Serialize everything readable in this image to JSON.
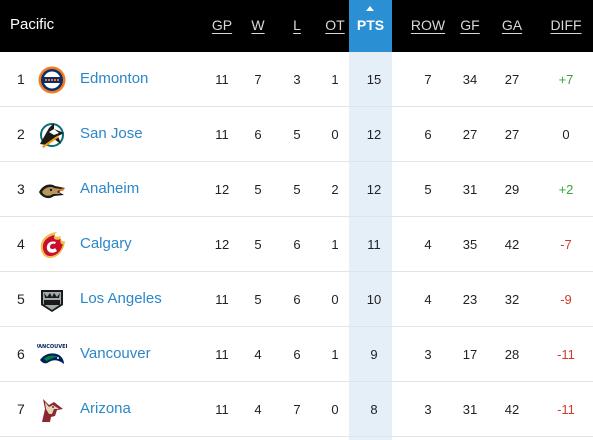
{
  "division": "Pacific",
  "columns": {
    "gp": "GP",
    "w": "W",
    "l": "L",
    "ot": "OT",
    "pts": "PTS",
    "row": "ROW",
    "gf": "GF",
    "ga": "GA",
    "diff": "DIFF"
  },
  "teams": [
    {
      "rank": "1",
      "name": "Edmonton",
      "logo": "oilers-logo",
      "gp": "11",
      "w": "7",
      "l": "3",
      "ot": "1",
      "pts": "15",
      "row": "7",
      "gf": "34",
      "ga": "27",
      "diff": "+7"
    },
    {
      "rank": "2",
      "name": "San Jose",
      "logo": "sharks-logo",
      "gp": "11",
      "w": "6",
      "l": "5",
      "ot": "0",
      "pts": "12",
      "row": "6",
      "gf": "27",
      "ga": "27",
      "diff": "0"
    },
    {
      "rank": "3",
      "name": "Anaheim",
      "logo": "ducks-logo",
      "gp": "12",
      "w": "5",
      "l": "5",
      "ot": "2",
      "pts": "12",
      "row": "5",
      "gf": "31",
      "ga": "29",
      "diff": "+2"
    },
    {
      "rank": "4",
      "name": "Calgary",
      "logo": "flames-logo",
      "gp": "12",
      "w": "5",
      "l": "6",
      "ot": "1",
      "pts": "11",
      "row": "4",
      "gf": "35",
      "ga": "42",
      "diff": "-7"
    },
    {
      "rank": "5",
      "name": "Los Angeles",
      "logo": "kings-logo",
      "gp": "11",
      "w": "5",
      "l": "6",
      "ot": "0",
      "pts": "10",
      "row": "4",
      "gf": "23",
      "ga": "32",
      "diff": "-9"
    },
    {
      "rank": "6",
      "name": "Vancouver",
      "logo": "canucks-logo",
      "gp": "11",
      "w": "4",
      "l": "6",
      "ot": "1",
      "pts": "9",
      "row": "3",
      "gf": "17",
      "ga": "28",
      "diff": "-11"
    },
    {
      "rank": "7",
      "name": "Arizona",
      "logo": "coyotes-logo",
      "gp": "11",
      "w": "4",
      "l": "7",
      "ot": "0",
      "pts": "8",
      "row": "3",
      "gf": "31",
      "ga": "42",
      "diff": "-11"
    }
  ],
  "colors": {
    "header_bg": "#000000",
    "sorted_column_header": "#2a8fd3",
    "sorted_column_bg": "#e5eff8",
    "team_link": "#2b87c8",
    "positive_diff": "#3aa33a",
    "negative_diff": "#d23a2a"
  },
  "sort": {
    "column": "pts",
    "direction": "descending",
    "indicator_icon": "sort-arrow-up-icon"
  }
}
